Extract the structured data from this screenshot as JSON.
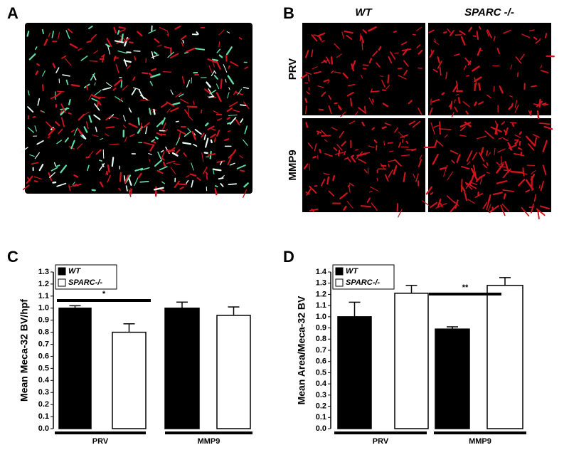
{
  "panels": {
    "a": "A",
    "b": "B",
    "c": "C",
    "d": "D"
  },
  "image_b": {
    "columns": [
      "WT",
      "SPARC -/-"
    ],
    "rows": [
      "PRV",
      "MMP9"
    ]
  },
  "chart_data": [
    {
      "type": "bar",
      "ylabel": "Mean Meca-32 BV/hpf",
      "categories": [
        "PRV",
        "MMP9"
      ],
      "series": [
        {
          "name": "WT",
          "color": "#000000",
          "values": [
            1.0,
            1.0
          ],
          "errors": [
            0.02,
            0.05
          ]
        },
        {
          "name": "SPARC-/-",
          "color": "#ffffff",
          "values": [
            0.8,
            0.94
          ],
          "errors": [
            0.07,
            0.07
          ]
        }
      ],
      "ylim": [
        0,
        1.3
      ],
      "yticks": [
        {
          "value": 0,
          "label": "0.0"
        },
        0.1,
        0.2,
        0.3,
        0.4,
        0.5,
        0.6,
        0.7,
        0.8,
        0.9,
        {
          "value": 1,
          "label": "1.0"
        },
        1.1,
        1.2,
        1.3
      ],
      "annotation": "*"
    },
    {
      "type": "bar",
      "ylabel": "Mean Area/Meca-32 BV",
      "categories": [
        "PRV",
        "MMP9"
      ],
      "series": [
        {
          "name": "WT",
          "color": "#000000",
          "values": [
            1.0,
            0.89
          ],
          "errors": [
            0.13,
            0.02
          ]
        },
        {
          "name": "SPARC-/-",
          "color": "#ffffff",
          "values": [
            1.21,
            1.28
          ],
          "errors": [
            0.07,
            0.07
          ]
        }
      ],
      "ylim": [
        0,
        1.4
      ],
      "yticks": [
        {
          "value": 0,
          "label": "0.0"
        },
        0.1,
        0.2,
        0.3,
        0.4,
        0.5,
        0.6,
        0.7,
        0.8,
        0.9,
        {
          "value": 1,
          "label": "1.0"
        },
        1.1,
        1.2,
        1.3,
        1.4
      ],
      "annotation": "**"
    }
  ]
}
